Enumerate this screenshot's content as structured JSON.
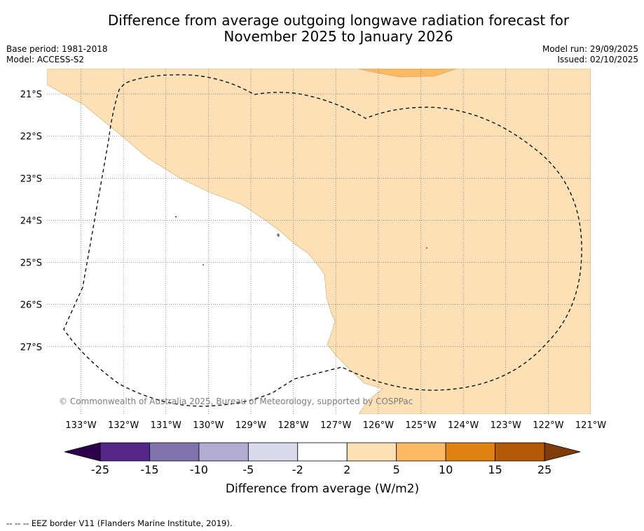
{
  "title": {
    "line1": "Difference from average outgoing longwave radiation forecast for",
    "line2": "November 2025 to January 2026"
  },
  "meta_left": {
    "base_period": "Base period: 1981-2018",
    "model": "Model: ACCESS-S2"
  },
  "meta_right": {
    "model_run": "Model run: 29/09/2025",
    "issued": "Issued: 02/10/2025"
  },
  "map": {
    "lat_labels": [
      "21°S",
      "22°S",
      "23°S",
      "24°S",
      "25°S",
      "26°S",
      "27°S"
    ],
    "lon_labels": [
      "133°W",
      "132°W",
      "131°W",
      "130°W",
      "129°W",
      "128°W",
      "127°W",
      "126°W",
      "125°W",
      "124°W",
      "123°W",
      "122°W",
      "121°W"
    ],
    "lat_range": [
      -28.6,
      -20.4
    ],
    "lon_range": [
      -133.8,
      -121.0
    ],
    "copyright": "© Commonwealth of Australia 2025, Bureau of Meteorology, supported by COSPPac"
  },
  "colorbar": {
    "ticks": [
      "-25",
      "-15",
      "-10",
      "-5",
      "-2",
      "2",
      "5",
      "10",
      "15",
      "25"
    ],
    "label": "Difference from average (W/m2)",
    "colors": [
      "#542788",
      "#8073ac",
      "#b2abd2",
      "#d8daeb",
      "#ffffff",
      "#fee0b6",
      "#fdb863",
      "#e08214",
      "#b35806"
    ],
    "under_color": "#2d004b",
    "over_color": "#7f3b08"
  },
  "footnote": "--  --  -- EEZ border V11 (Flanders Marine Institute, 2019)."
}
